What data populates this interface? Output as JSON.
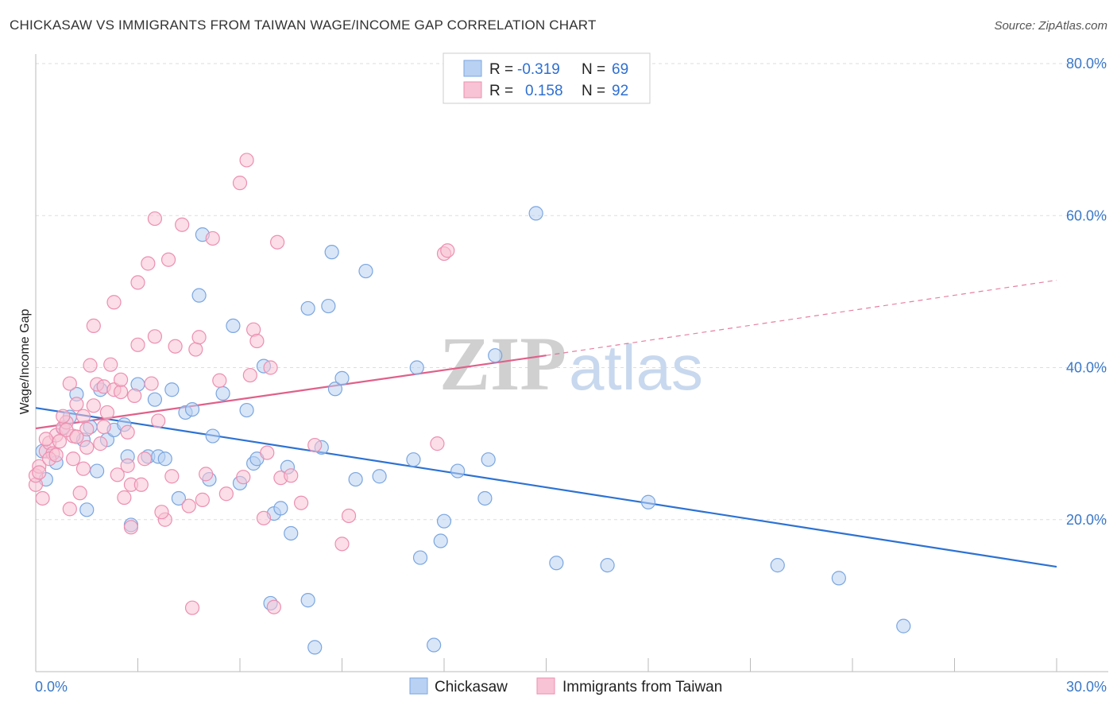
{
  "header": {
    "title": "CHICKASAW VS IMMIGRANTS FROM TAIWAN WAGE/INCOME GAP CORRELATION CHART",
    "source": "Source: ZipAtlas.com"
  },
  "watermark": {
    "zip": "ZIP",
    "atlas": "atlas"
  },
  "colors": {
    "blue_fill": "#b9d1f2",
    "blue_stroke": "#7aa6e0",
    "blue_line": "#2d72d2",
    "pink_fill": "#f8c3d4",
    "pink_stroke": "#ec8fb0",
    "pink_line": "#e0608a",
    "tick_text": "#3a78c8",
    "grid": "#dddddd"
  },
  "stats": {
    "r_label": "R =",
    "n_label": "N =",
    "blue": {
      "r": "-0.319",
      "n": "69"
    },
    "pink": {
      "r": "0.158",
      "n": "92"
    }
  },
  "legend": {
    "blue": "Chickasaw",
    "pink": "Immigrants from Taiwan"
  },
  "chart_data": {
    "type": "scatter",
    "title": "CHICKASAW VS IMMIGRANTS FROM TAIWAN WAGE/INCOME GAP CORRELATION CHART",
    "ylabel": "Wage/Income Gap",
    "xlabel": "",
    "xlim": [
      0,
      30
    ],
    "ylim": [
      0,
      80
    ],
    "x_tick_labels": [
      "0.0%",
      "30.0%"
    ],
    "y_ticks": [
      {
        "value": 20,
        "label": "20.0%"
      },
      {
        "value": 40,
        "label": "40.0%"
      },
      {
        "value": 60,
        "label": "60.0%"
      },
      {
        "value": 80,
        "label": "80.0%"
      }
    ],
    "grid": true,
    "series": [
      {
        "name": "Chickasaw",
        "color": "blue",
        "trend": {
          "x": [
            0,
            30
          ],
          "y": [
            34.7,
            13.8
          ],
          "dashed_to": null
        },
        "points": [
          [
            0.2,
            29.0
          ],
          [
            0.6,
            27.5
          ],
          [
            1.0,
            33.5
          ],
          [
            1.2,
            36.5
          ],
          [
            1.4,
            30.5
          ],
          [
            1.6,
            32.2
          ],
          [
            1.8,
            26.4
          ],
          [
            1.9,
            37.1
          ],
          [
            2.1,
            30.5
          ],
          [
            2.3,
            31.8
          ],
          [
            2.6,
            32.5
          ],
          [
            2.7,
            28.3
          ],
          [
            2.8,
            19.3
          ],
          [
            3.0,
            37.8
          ],
          [
            3.3,
            28.3
          ],
          [
            3.5,
            35.8
          ],
          [
            3.6,
            28.3
          ],
          [
            3.8,
            28.0
          ],
          [
            4.0,
            37.1
          ],
          [
            4.2,
            22.8
          ],
          [
            4.4,
            34.1
          ],
          [
            4.6,
            34.5
          ],
          [
            4.8,
            49.5
          ],
          [
            4.9,
            57.5
          ],
          [
            5.1,
            25.3
          ],
          [
            5.2,
            31.0
          ],
          [
            5.5,
            36.6
          ],
          [
            5.8,
            45.5
          ],
          [
            6.0,
            24.8
          ],
          [
            6.2,
            34.4
          ],
          [
            6.4,
            27.4
          ],
          [
            6.5,
            28.0
          ],
          [
            6.7,
            40.2
          ],
          [
            6.9,
            9.0
          ],
          [
            7.0,
            20.8
          ],
          [
            7.2,
            21.5
          ],
          [
            7.4,
            26.9
          ],
          [
            7.5,
            18.2
          ],
          [
            8.0,
            9.4
          ],
          [
            8.0,
            47.8
          ],
          [
            8.2,
            3.2
          ],
          [
            8.4,
            29.5
          ],
          [
            8.6,
            48.1
          ],
          [
            8.7,
            55.2
          ],
          [
            8.8,
            37.2
          ],
          [
            9.0,
            38.6
          ],
          [
            9.4,
            25.3
          ],
          [
            9.7,
            52.7
          ],
          [
            10.1,
            25.7
          ],
          [
            11.1,
            27.9
          ],
          [
            11.2,
            40.0
          ],
          [
            11.3,
            15.0
          ],
          [
            11.7,
            3.5
          ],
          [
            11.9,
            17.2
          ],
          [
            12.0,
            19.8
          ],
          [
            12.4,
            26.4
          ],
          [
            13.2,
            22.8
          ],
          [
            13.3,
            27.9
          ],
          [
            13.5,
            41.6
          ],
          [
            14.7,
            60.3
          ],
          [
            15.3,
            14.3
          ],
          [
            16.8,
            14.0
          ],
          [
            18.0,
            22.3
          ],
          [
            21.8,
            14.0
          ],
          [
            23.6,
            12.3
          ],
          [
            25.5,
            6.0
          ],
          [
            0.3,
            25.3
          ],
          [
            1.5,
            21.3
          ],
          [
            0.8,
            32.0
          ]
        ]
      },
      {
        "name": "Immigrants from Taiwan",
        "color": "pink",
        "trend": {
          "x": [
            0,
            15
          ],
          "y": [
            32.0,
            41.6
          ],
          "dashed_to": [
            30,
            51.5
          ]
        },
        "points": [
          [
            0.0,
            24.6
          ],
          [
            0.0,
            25.8
          ],
          [
            0.1,
            27.0
          ],
          [
            0.2,
            22.8
          ],
          [
            0.3,
            29.0
          ],
          [
            0.4,
            30.1
          ],
          [
            0.5,
            28.7
          ],
          [
            0.6,
            31.1
          ],
          [
            0.7,
            30.3
          ],
          [
            0.8,
            32.1
          ],
          [
            0.9,
            32.8
          ],
          [
            1.0,
            37.9
          ],
          [
            1.1,
            28.0
          ],
          [
            1.1,
            31.0
          ],
          [
            1.2,
            35.2
          ],
          [
            1.3,
            23.5
          ],
          [
            1.4,
            33.6
          ],
          [
            1.5,
            31.9
          ],
          [
            1.5,
            29.5
          ],
          [
            1.6,
            40.3
          ],
          [
            1.7,
            35.0
          ],
          [
            1.7,
            45.5
          ],
          [
            1.8,
            37.8
          ],
          [
            1.9,
            30.0
          ],
          [
            2.0,
            37.5
          ],
          [
            2.0,
            32.2
          ],
          [
            2.1,
            34.1
          ],
          [
            2.2,
            40.4
          ],
          [
            2.3,
            37.1
          ],
          [
            2.3,
            48.6
          ],
          [
            2.5,
            36.8
          ],
          [
            2.5,
            38.4
          ],
          [
            2.6,
            22.9
          ],
          [
            2.7,
            31.5
          ],
          [
            2.7,
            27.1
          ],
          [
            2.8,
            24.6
          ],
          [
            2.9,
            36.3
          ],
          [
            3.0,
            43.0
          ],
          [
            3.0,
            51.2
          ],
          [
            3.1,
            24.6
          ],
          [
            3.2,
            28.0
          ],
          [
            3.3,
            53.7
          ],
          [
            3.4,
            37.9
          ],
          [
            3.5,
            59.6
          ],
          [
            3.5,
            44.1
          ],
          [
            3.6,
            33.0
          ],
          [
            3.8,
            20.0
          ],
          [
            3.9,
            54.2
          ],
          [
            4.0,
            25.7
          ],
          [
            4.1,
            42.8
          ],
          [
            4.3,
            58.8
          ],
          [
            4.5,
            21.8
          ],
          [
            4.6,
            8.4
          ],
          [
            4.7,
            42.4
          ],
          [
            4.8,
            44.0
          ],
          [
            5.0,
            26.0
          ],
          [
            5.2,
            57.0
          ],
          [
            5.4,
            38.3
          ],
          [
            5.6,
            23.4
          ],
          [
            6.0,
            64.3
          ],
          [
            6.1,
            25.6
          ],
          [
            6.2,
            67.3
          ],
          [
            6.3,
            39.0
          ],
          [
            6.4,
            45.0
          ],
          [
            6.5,
            43.5
          ],
          [
            6.7,
            20.2
          ],
          [
            6.8,
            28.8
          ],
          [
            6.9,
            40.0
          ],
          [
            7.0,
            8.5
          ],
          [
            7.1,
            56.5
          ],
          [
            7.2,
            25.5
          ],
          [
            7.5,
            25.8
          ],
          [
            7.8,
            22.2
          ],
          [
            8.2,
            29.8
          ],
          [
            9.0,
            16.8
          ],
          [
            9.2,
            20.5
          ],
          [
            11.8,
            30.0
          ],
          [
            12.0,
            55.0
          ],
          [
            12.1,
            55.4
          ],
          [
            0.1,
            26.2
          ],
          [
            0.3,
            30.6
          ],
          [
            0.4,
            28.0
          ],
          [
            0.6,
            28.5
          ],
          [
            0.8,
            33.6
          ],
          [
            0.9,
            31.8
          ],
          [
            1.2,
            30.9
          ],
          [
            1.4,
            26.7
          ],
          [
            2.4,
            25.9
          ],
          [
            3.7,
            21.0
          ],
          [
            4.9,
            22.6
          ],
          [
            2.8,
            19.0
          ],
          [
            1.0,
            21.4
          ]
        ]
      }
    ]
  }
}
